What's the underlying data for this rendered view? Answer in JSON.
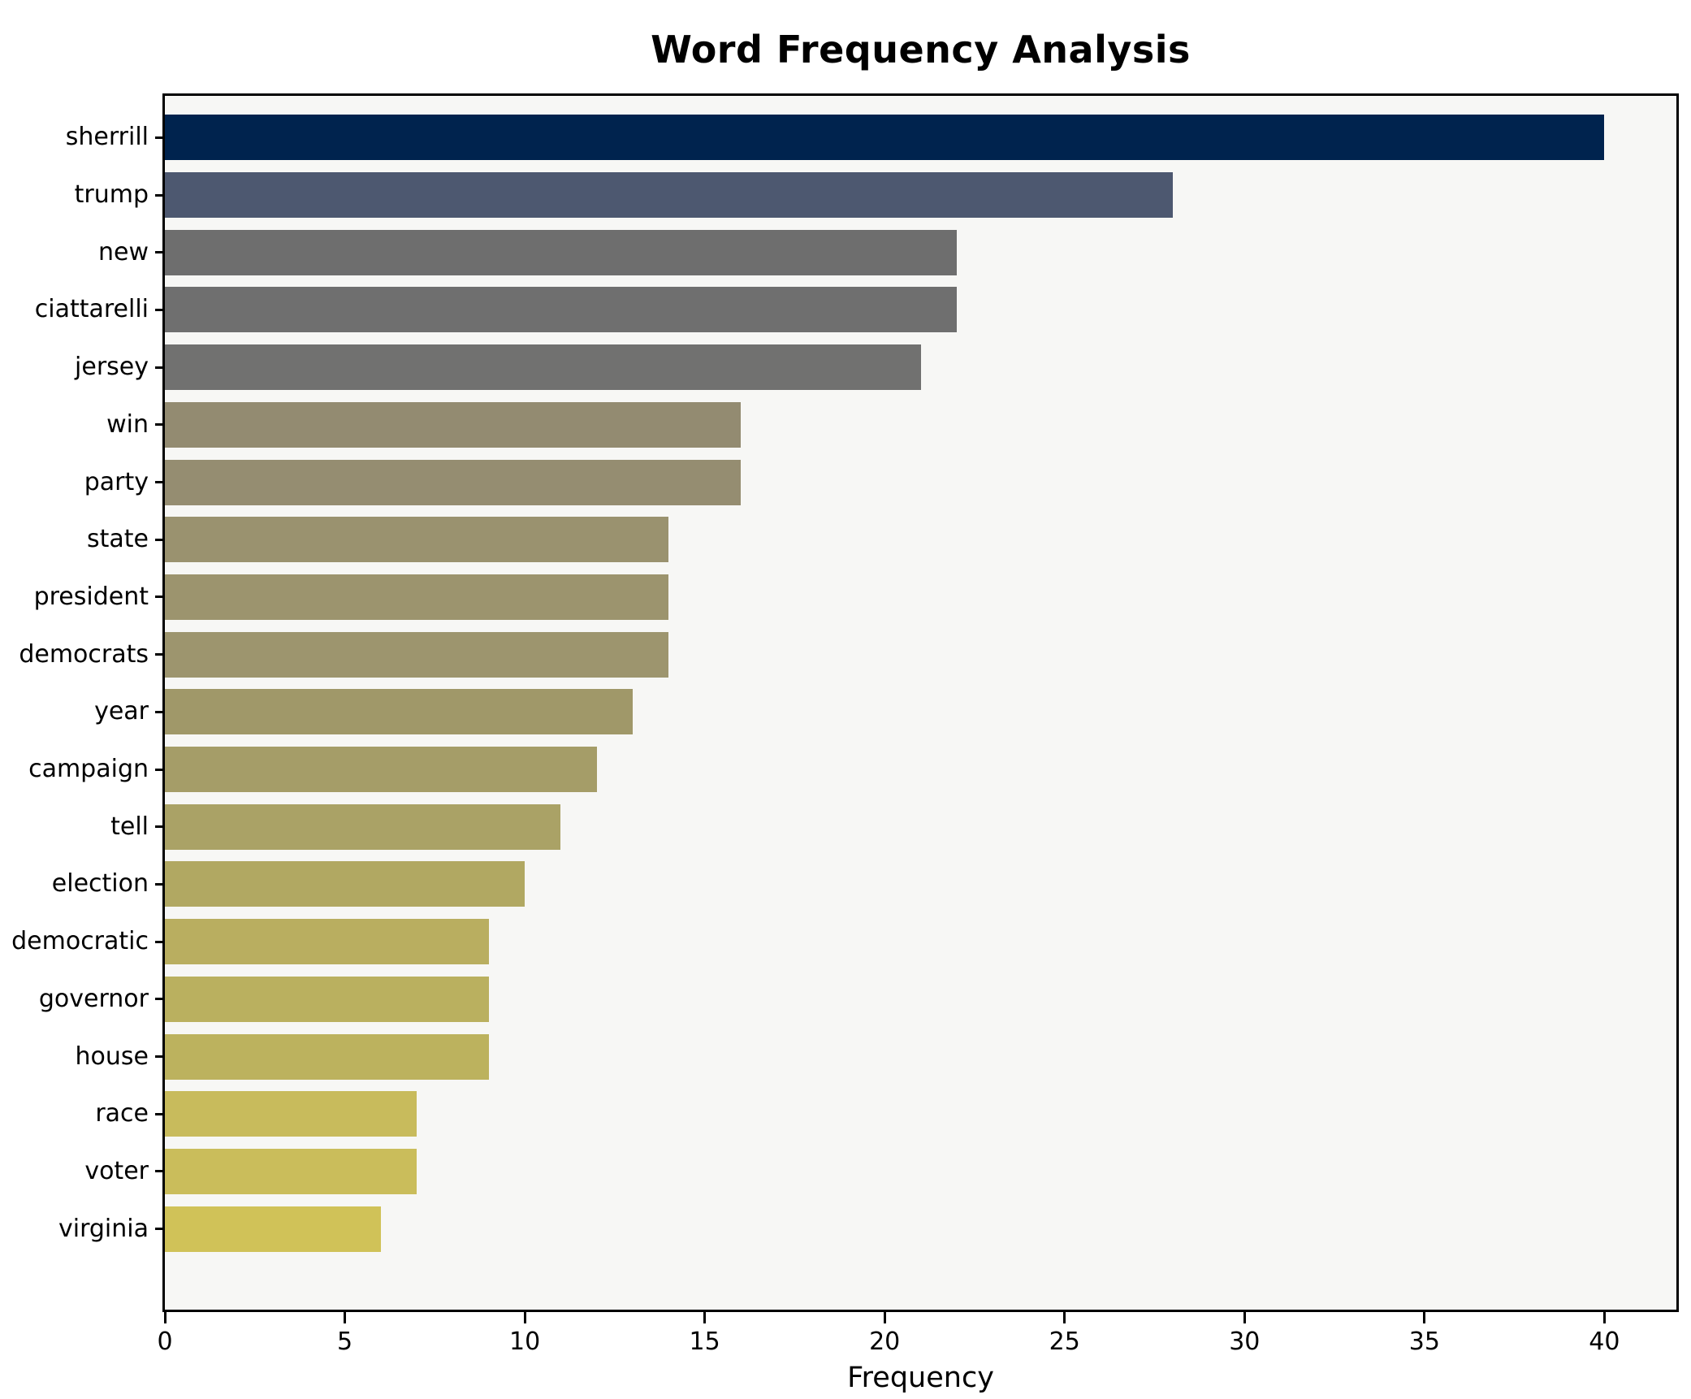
{
  "chart_data": {
    "type": "bar",
    "orientation": "horizontal",
    "title": "Word Frequency Analysis",
    "xlabel": "Frequency",
    "ylabel": "",
    "categories": [
      "sherrill",
      "trump",
      "new",
      "ciattarelli",
      "jersey",
      "win",
      "party",
      "state",
      "president",
      "democrats",
      "year",
      "campaign",
      "tell",
      "election",
      "democratic",
      "governor",
      "house",
      "race",
      "voter",
      "virginia"
    ],
    "values": [
      40,
      28,
      22,
      22,
      21,
      16,
      16,
      14,
      14,
      14,
      13,
      12,
      11,
      10,
      9,
      9,
      9,
      7,
      7,
      6
    ],
    "bar_colors": [
      "#00234e",
      "#4d5870",
      "#6e6e6e",
      "#6f6f6f",
      "#717170",
      "#938b71",
      "#958d71",
      "#9a926f",
      "#9c946e",
      "#9d956e",
      "#a09869",
      "#a59d68",
      "#aaa266",
      "#b1a862",
      "#b9ae60",
      "#bab05f",
      "#bcb25e",
      "#c8bb5c",
      "#cabd5b",
      "#d0c258"
    ],
    "xlim": [
      0,
      42
    ],
    "xticks": [
      0,
      5,
      10,
      15,
      20,
      25,
      30,
      35,
      40
    ],
    "grid": false,
    "legend_position": "none",
    "plot_background": "#f7f7f5",
    "figure_background": "#ffffff",
    "spine_color": "#000000"
  }
}
